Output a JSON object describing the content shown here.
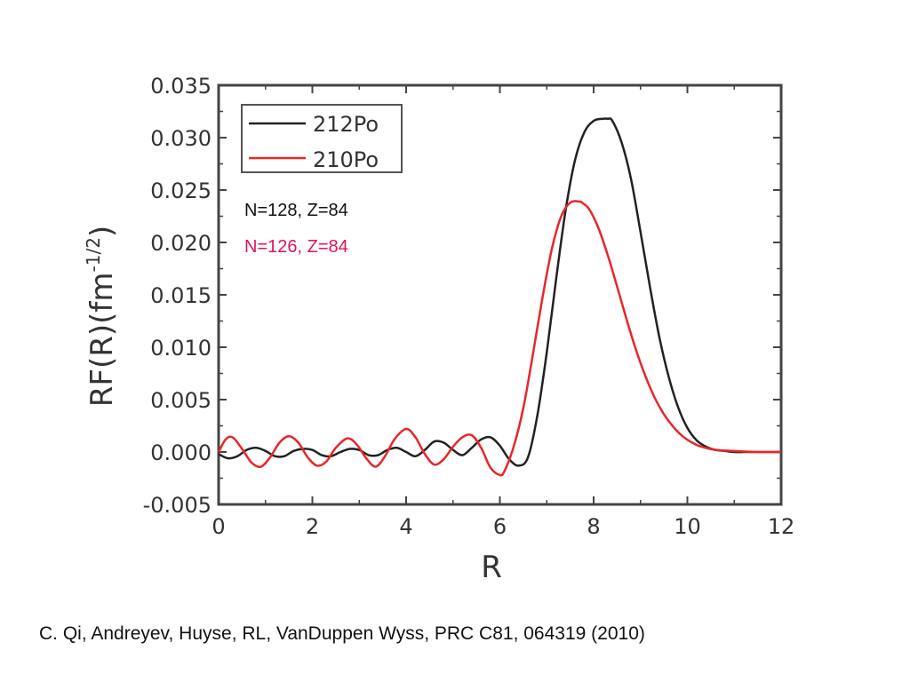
{
  "chart_data": {
    "type": "line",
    "xlabel": "R",
    "ylabel": "RF(R)(fm",
    "ylabel_exponent": "-1/2",
    "ylabel_suffix": ")",
    "xlim": [
      0,
      12
    ],
    "ylim": [
      -0.005,
      0.035
    ],
    "xticks": [
      0,
      2,
      4,
      6,
      8,
      10,
      12
    ],
    "xtick_labels": [
      "0",
      "2",
      "4",
      "6",
      "8",
      "10",
      "12"
    ],
    "yticks": [
      -0.005,
      0.0,
      0.005,
      0.01,
      0.015,
      0.02,
      0.025,
      0.03,
      0.035
    ],
    "ytick_labels": [
      "-0.005",
      "0.000",
      "0.005",
      "0.010",
      "0.015",
      "0.020",
      "0.025",
      "0.030",
      "0.035"
    ],
    "grid": false,
    "legend_placement": "top-left",
    "series": [
      {
        "name": "212Po",
        "color": "#222222",
        "x": [
          0,
          0.2,
          0.4,
          0.6,
          0.8,
          1.0,
          1.2,
          1.4,
          1.6,
          1.8,
          2.0,
          2.2,
          2.4,
          2.6,
          2.8,
          3.0,
          3.2,
          3.4,
          3.6,
          3.8,
          4.0,
          4.2,
          4.4,
          4.6,
          4.8,
          5.0,
          5.2,
          5.4,
          5.6,
          5.8,
          6.0,
          6.2,
          6.4,
          6.6,
          6.8,
          7.0,
          7.2,
          7.4,
          7.6,
          7.8,
          8.0,
          8.2,
          8.3,
          8.4,
          8.6,
          8.8,
          9.0,
          9.2,
          9.4,
          9.6,
          9.8,
          10.0,
          10.2,
          10.4,
          10.6,
          10.8,
          11.0,
          11.4,
          12.0
        ],
        "y": [
          -0.0002,
          -0.0006,
          -0.0004,
          0.0002,
          0.0004,
          0.0001,
          -0.0004,
          -0.0004,
          0.0001,
          0.0003,
          0.0002,
          -0.0003,
          -0.0004,
          0.0,
          0.0003,
          0.0002,
          -0.0003,
          -0.0003,
          0.0002,
          0.0004,
          0.0,
          -0.0004,
          0.0002,
          0.001,
          0.0009,
          0.0002,
          -0.0003,
          0.0004,
          0.0012,
          0.0014,
          0.0006,
          -0.0007,
          -0.0013,
          -0.0005,
          0.0035,
          0.0095,
          0.0165,
          0.023,
          0.0278,
          0.0305,
          0.0316,
          0.0318,
          0.0318,
          0.0316,
          0.0295,
          0.026,
          0.021,
          0.0158,
          0.011,
          0.0072,
          0.0043,
          0.0023,
          0.0011,
          0.0005,
          0.0002,
          0.0001,
          0.0,
          0.0,
          0.0
        ]
      },
      {
        "name": "210Po",
        "color": "#e8262a",
        "x": [
          0,
          0.15,
          0.3,
          0.5,
          0.7,
          0.9,
          1.1,
          1.3,
          1.5,
          1.7,
          1.9,
          2.1,
          2.3,
          2.5,
          2.75,
          2.95,
          3.15,
          3.35,
          3.55,
          3.75,
          4.0,
          4.2,
          4.4,
          4.6,
          4.8,
          5.0,
          5.2,
          5.4,
          5.6,
          5.8,
          6.0,
          6.1,
          6.3,
          6.5,
          6.7,
          6.9,
          7.1,
          7.3,
          7.5,
          7.7,
          7.75,
          7.9,
          8.1,
          8.3,
          8.5,
          8.7,
          8.9,
          9.1,
          9.3,
          9.5,
          9.7,
          9.9,
          10.1,
          10.3,
          10.6,
          11.0,
          11.5,
          12.0
        ],
        "y": [
          0.0,
          0.0012,
          0.0014,
          0.0003,
          -0.001,
          -0.0014,
          -0.0005,
          0.0009,
          0.0015,
          0.0009,
          -0.0005,
          -0.0013,
          -0.0009,
          0.0004,
          0.0013,
          0.0007,
          -0.0006,
          -0.0014,
          -0.0004,
          0.0012,
          0.0022,
          0.0014,
          -0.0002,
          -0.0012,
          -0.0007,
          0.0005,
          0.0014,
          0.0016,
          0.0004,
          -0.0015,
          -0.0022,
          -0.0018,
          0.0006,
          0.0042,
          0.0092,
          0.0145,
          0.0192,
          0.0224,
          0.0238,
          0.0239,
          0.0238,
          0.0232,
          0.0214,
          0.0188,
          0.0158,
          0.0127,
          0.0098,
          0.0073,
          0.0052,
          0.0036,
          0.0024,
          0.0015,
          0.0009,
          0.0005,
          0.0002,
          0.0001,
          0.0,
          0.0
        ]
      }
    ]
  },
  "annotations": {
    "line1": "N=128, Z=84",
    "line1_color": "#111111",
    "line2": "N=126, Z=84",
    "line2_color": "#e0135f"
  },
  "citation": "C. Qi, Andreyev, Huyse, RL, VanDuppen Wyss, PRC C81, 064319 (2010)"
}
